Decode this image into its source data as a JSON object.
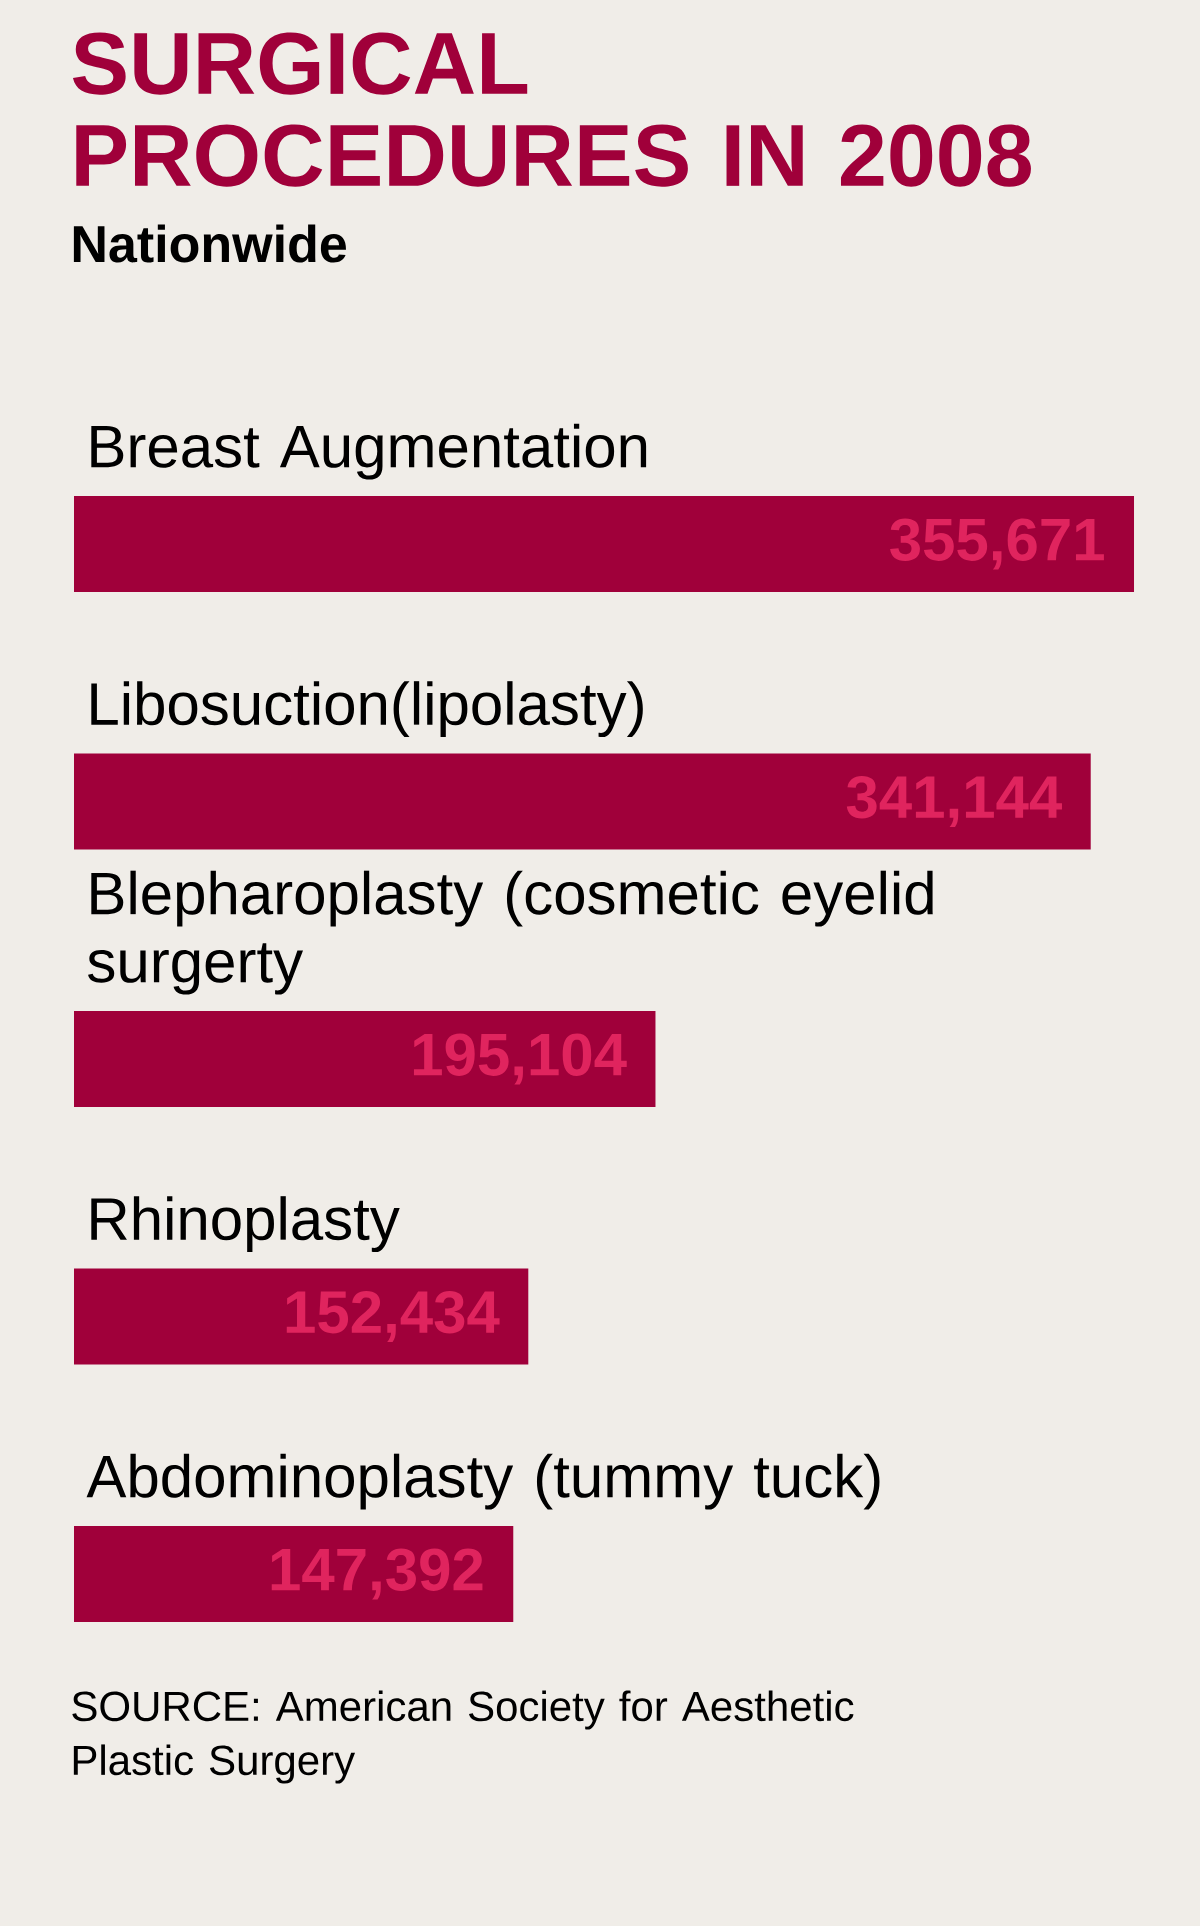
{
  "chart_data": {
    "type": "bar",
    "orientation": "horizontal",
    "title": "SURGICAL PROCEDURES IN 2008",
    "subtitle": "Nationwide",
    "categories": [
      "Breast Augmentation",
      "Libosuction(lipolasty)",
      "Blepharoplasty (cosmetic eyelid surgerty",
      "Rhinoplasty",
      "Abdominoplasty (tummy tuck)"
    ],
    "values": [
      355671,
      341144,
      195104,
      152434,
      147392
    ],
    "value_labels": [
      "355,671",
      "341,144",
      "195,104",
      "152,434",
      "147,392"
    ],
    "color": "#a0003a",
    "annotations": [
      "SOURCE: American Society for Aesthetic Plastic Surgery"
    ]
  }
}
